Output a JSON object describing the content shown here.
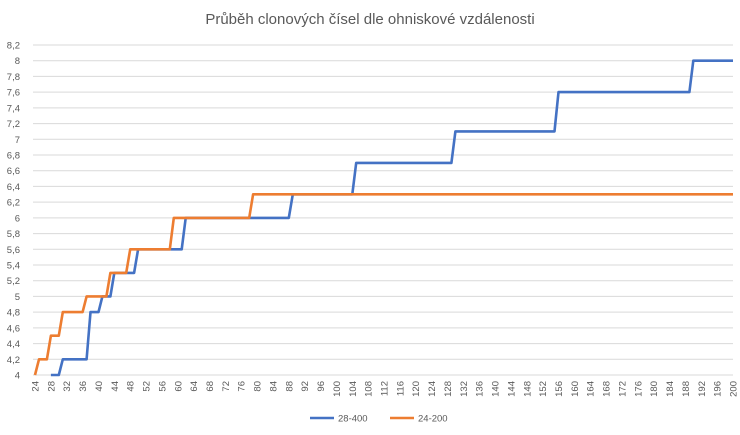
{
  "chart_data": {
    "type": "line",
    "title": "Průběh clonových čísel dle ohniskové vzdálenosti",
    "xlabel": "",
    "ylabel": "",
    "xlim": [
      24,
      200
    ],
    "ylim": [
      4,
      8.2
    ],
    "grid": true,
    "legend_position": "bottom",
    "x_tick_labels": [
      "24",
      "28",
      "32",
      "36",
      "40",
      "44",
      "48",
      "52",
      "56",
      "60",
      "64",
      "68",
      "72",
      "76",
      "80",
      "84",
      "88",
      "92",
      "96",
      "100",
      "104",
      "108",
      "112",
      "116",
      "120",
      "124",
      "128",
      "132",
      "136",
      "140",
      "144",
      "148",
      "152",
      "156",
      "160",
      "164",
      "168",
      "172",
      "176",
      "180",
      "184",
      "188",
      "192",
      "196",
      "200"
    ],
    "y_ticks": [
      4,
      4.2,
      4.4,
      4.6,
      4.8,
      5,
      5.2,
      5.4,
      5.6,
      5.8,
      6,
      6.2,
      6.4,
      6.6,
      6.8,
      7,
      7.2,
      7.4,
      7.6,
      7.8,
      8,
      8.2
    ],
    "y_tick_labels": [
      "4",
      "4,2",
      "4,4",
      "4,6",
      "4,8",
      "5",
      "5,2",
      "5,4",
      "5,6",
      "5,8",
      "6",
      "6,2",
      "6,4",
      "6,6",
      "6,8",
      "7",
      "7,2",
      "7,4",
      "7,6",
      "7,8",
      "8",
      "8,2"
    ],
    "series": [
      {
        "name": "28-400",
        "color": "#4472c4",
        "x_range": [
          28,
          200
        ],
        "steps": [
          [
            28,
            4.0
          ],
          [
            31,
            4.2
          ],
          [
            38,
            4.8
          ],
          [
            41,
            5.0
          ],
          [
            44,
            5.3
          ],
          [
            50,
            5.6
          ],
          [
            62,
            6.0
          ],
          [
            89,
            6.3
          ],
          [
            105,
            6.7
          ],
          [
            130,
            7.1
          ],
          [
            156,
            7.6
          ],
          [
            190,
            8.0
          ]
        ]
      },
      {
        "name": "24-200",
        "color": "#ed7d31",
        "x_range": [
          24,
          200
        ],
        "steps": [
          [
            24,
            4.0
          ],
          [
            25,
            4.2
          ],
          [
            28,
            4.5
          ],
          [
            31,
            4.8
          ],
          [
            37,
            5.0
          ],
          [
            43,
            5.3
          ],
          [
            48,
            5.6
          ],
          [
            59,
            6.0
          ],
          [
            79,
            6.3
          ]
        ]
      }
    ]
  }
}
